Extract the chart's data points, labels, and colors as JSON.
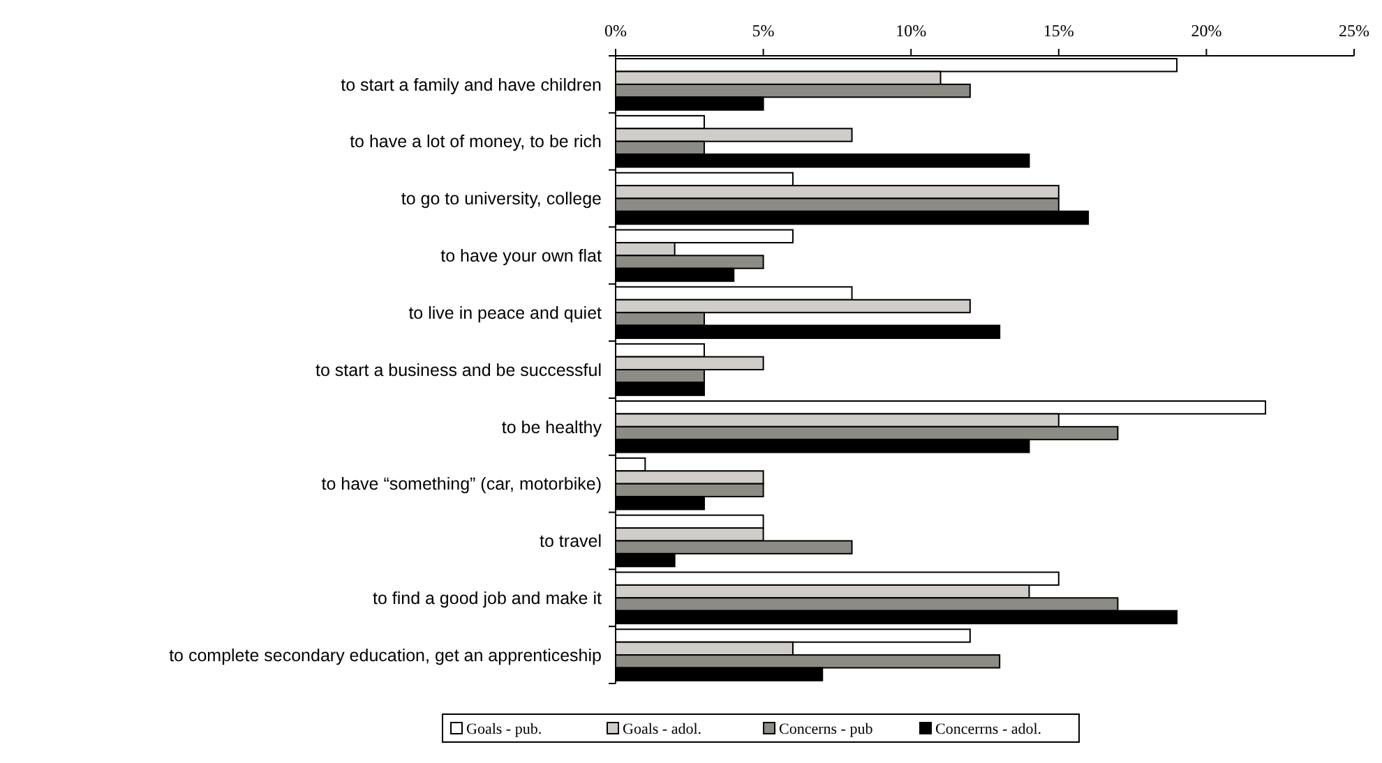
{
  "chart_data": {
    "type": "bar",
    "orientation": "horizontal",
    "categories": [
      "to start a family and have children",
      "to have a lot of money, to be rich",
      "to go to university, college",
      "to have your own flat",
      "to live in peace and quiet",
      "to start a business and be successful",
      "to be healthy",
      "to have “something” (car, motorbike)",
      "to travel",
      "to find a good job and make it",
      "to complete secondary education, get an apprenticeship"
    ],
    "series": [
      {
        "name": "Goals - pub.",
        "color": "#ffffff",
        "values": [
          19,
          3,
          6,
          6,
          8,
          3,
          22,
          1,
          5,
          15,
          12
        ]
      },
      {
        "name": "Goals - adol.",
        "color": "#d0ccc8",
        "values": [
          11,
          8,
          15,
          2,
          12,
          5,
          15,
          5,
          5,
          14,
          6
        ]
      },
      {
        "name": "Concerns - pub",
        "color": "#8c8c84",
        "values": [
          12,
          3,
          15,
          5,
          3,
          3,
          17,
          5,
          8,
          17,
          13
        ]
      },
      {
        "name": "Concerrns - adol.",
        "color": "#000000",
        "values": [
          5,
          14,
          16,
          4,
          13,
          3,
          14,
          3,
          2,
          19,
          7
        ]
      }
    ],
    "xlim": [
      0,
      25
    ],
    "xticks": [
      {
        "value": 0,
        "label": "0%"
      },
      {
        "value": 5,
        "label": "5%"
      },
      {
        "value": 10,
        "label": "10%"
      },
      {
        "value": 15,
        "label": "15%"
      },
      {
        "value": 20,
        "label": "20%"
      },
      {
        "value": 25,
        "label": "25%"
      }
    ],
    "grid": false,
    "legend": "bottom"
  }
}
